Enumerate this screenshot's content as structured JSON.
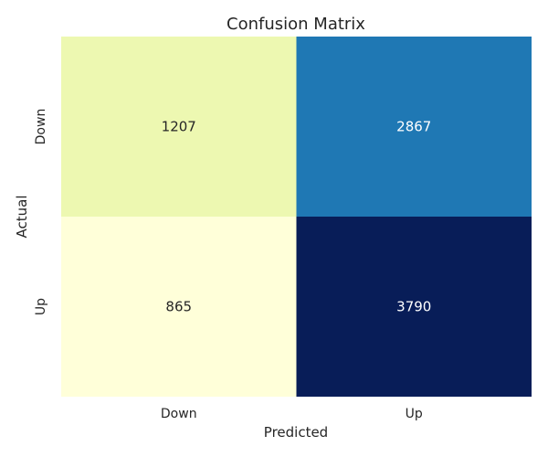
{
  "chart_data": {
    "type": "heatmap",
    "title": "Confusion Matrix",
    "xlabel": "Predicted",
    "ylabel": "Actual",
    "x_categories": [
      "Down",
      "Up"
    ],
    "y_categories": [
      "Down",
      "Up"
    ],
    "values": [
      [
        1207,
        2867
      ],
      [
        865,
        3790
      ]
    ],
    "colormap": "YlGnBu",
    "colorbar": false,
    "cell_colors": [
      [
        "#edf8b1",
        "#1f78b4"
      ],
      [
        "#ffffd9",
        "#081d58"
      ]
    ],
    "annotation_colors": [
      [
        "#262626",
        "#ffffff"
      ],
      [
        "#262626",
        "#ffffff"
      ]
    ]
  }
}
